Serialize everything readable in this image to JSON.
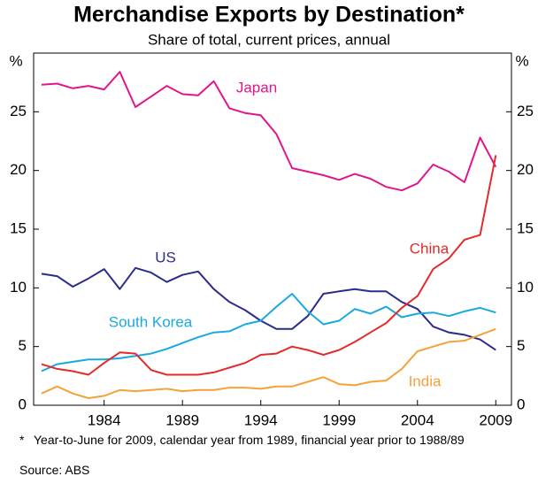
{
  "chart_data": {
    "type": "line",
    "title": "Merchandise Exports by Destination*",
    "subtitle": "Share of total, current prices, annual",
    "y_unit": "%",
    "x": [
      1980,
      1981,
      1982,
      1983,
      1984,
      1985,
      1986,
      1987,
      1988,
      1989,
      1990,
      1991,
      1992,
      1993,
      1994,
      1995,
      1996,
      1997,
      1998,
      1999,
      2000,
      2001,
      2002,
      2003,
      2004,
      2005,
      2006,
      2007,
      2008,
      2009
    ],
    "xlim": [
      1979.5,
      2010
    ],
    "xticks": [
      1984,
      1989,
      1994,
      1999,
      2004,
      2009
    ],
    "ylim": [
      0,
      30
    ],
    "yticks": [
      0,
      5,
      10,
      15,
      20,
      25
    ],
    "series": [
      {
        "name": "Japan",
        "color": "#e0168c",
        "values": [
          27.3,
          27.4,
          27.0,
          27.2,
          26.9,
          28.4,
          25.4,
          26.3,
          27.2,
          26.5,
          26.4,
          27.6,
          25.3,
          24.9,
          24.7,
          23.1,
          20.2,
          19.9,
          19.6,
          19.2,
          19.7,
          19.3,
          18.6,
          18.3,
          18.9,
          20.5,
          19.9,
          19.0,
          22.8,
          20.3
        ]
      },
      {
        "name": "US",
        "color": "#2b2d8a",
        "values": [
          11.2,
          11.0,
          10.1,
          10.8,
          11.6,
          9.9,
          11.7,
          11.3,
          10.5,
          11.1,
          11.4,
          9.9,
          8.8,
          8.1,
          7.2,
          6.5,
          6.5,
          7.6,
          9.5,
          9.7,
          9.9,
          9.7,
          9.7,
          8.8,
          8.2,
          6.7,
          6.2,
          6.0,
          5.6,
          4.7
        ]
      },
      {
        "name": "South Korea",
        "color": "#19a9e1",
        "values": [
          2.9,
          3.5,
          3.7,
          3.9,
          3.9,
          4.0,
          4.2,
          4.4,
          4.8,
          5.3,
          5.8,
          6.2,
          6.3,
          6.9,
          7.2,
          8.4,
          9.5,
          8.0,
          6.9,
          7.2,
          8.2,
          7.8,
          8.4,
          7.5,
          7.8,
          7.9,
          7.6,
          8.0,
          8.3,
          7.9
        ]
      },
      {
        "name": "China",
        "color": "#e32b2b",
        "values": [
          3.5,
          3.1,
          2.9,
          2.6,
          3.6,
          4.5,
          4.4,
          3.0,
          2.6,
          2.6,
          2.6,
          2.8,
          3.2,
          3.6,
          4.3,
          4.4,
          5.0,
          4.7,
          4.3,
          4.7,
          5.4,
          6.2,
          7.0,
          8.3,
          9.3,
          11.6,
          12.5,
          14.1,
          14.5,
          21.3
        ]
      },
      {
        "name": "India",
        "color": "#f4a23a",
        "values": [
          1.0,
          1.6,
          1.0,
          0.6,
          0.8,
          1.3,
          1.2,
          1.3,
          1.4,
          1.2,
          1.3,
          1.3,
          1.5,
          1.5,
          1.4,
          1.6,
          1.6,
          2.0,
          2.4,
          1.8,
          1.7,
          2.0,
          2.1,
          3.1,
          4.6,
          5.0,
          5.4,
          5.5,
          6.0,
          6.5
        ]
      }
    ],
    "footnote_marker": "*",
    "footnote": "Year-to-June for 2009, calendar year from 1989, financial year prior to 1988/89",
    "source": "Source: ABS"
  }
}
